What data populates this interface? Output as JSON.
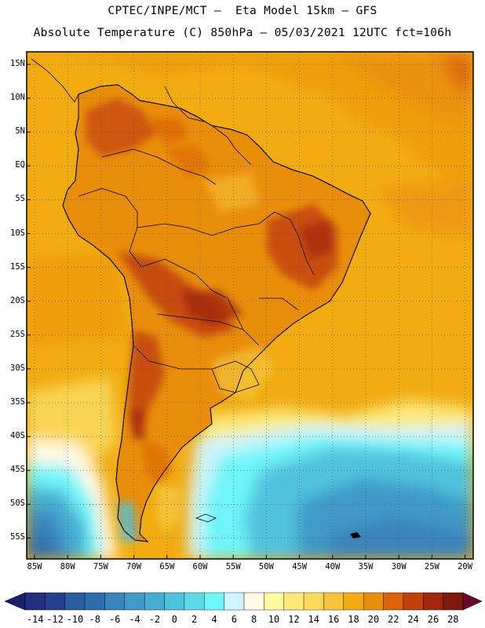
{
  "header": {
    "line1": "CPTEC/INPE/MCT –  Eta Model 15km – GFS",
    "line2": "Absolute Temperature (C) 850hPa – 05/03/2021 12UTC fct=106h"
  },
  "map": {
    "type": "filled-contour temperature map",
    "region": "South America",
    "grid": "dotted lat/lon graticule",
    "lat_labels": [
      "15N",
      "10N",
      "5N",
      "EQ",
      "5S",
      "10S",
      "15S",
      "20S",
      "25S",
      "30S",
      "35S",
      "40S",
      "45S",
      "50S",
      "55S"
    ],
    "lon_labels": [
      "85W",
      "80W",
      "75W",
      "70W",
      "65W",
      "60W",
      "55W",
      "50W",
      "45W",
      "40W",
      "35W",
      "30W",
      "25W",
      "20W"
    ]
  },
  "colorbar": {
    "ticks": [
      "-14",
      "-12",
      "-10",
      "-8",
      "-6",
      "-4",
      "-2",
      "0",
      "2",
      "4",
      "6",
      "8",
      "10",
      "12",
      "14",
      "16",
      "18",
      "20",
      "22",
      "24",
      "26",
      "28"
    ],
    "colors": [
      "#262f7e",
      "#253f8c",
      "#2b5b9f",
      "#2e6dab",
      "#3b84bb",
      "#4199c6",
      "#46acd0",
      "#4fc3dd",
      "#5ed9e8",
      "#6ff5fa",
      "#cff4fb",
      "#fff9e6",
      "#fffaa0",
      "#fde97a",
      "#fbd95d",
      "#f5c43a",
      "#f2ac12",
      "#e98e0b",
      "#db6309",
      "#c1400c",
      "#a1250f",
      "#7e1a10"
    ],
    "under_color": "#1c1f6e",
    "over_color": "#6a0828"
  }
}
